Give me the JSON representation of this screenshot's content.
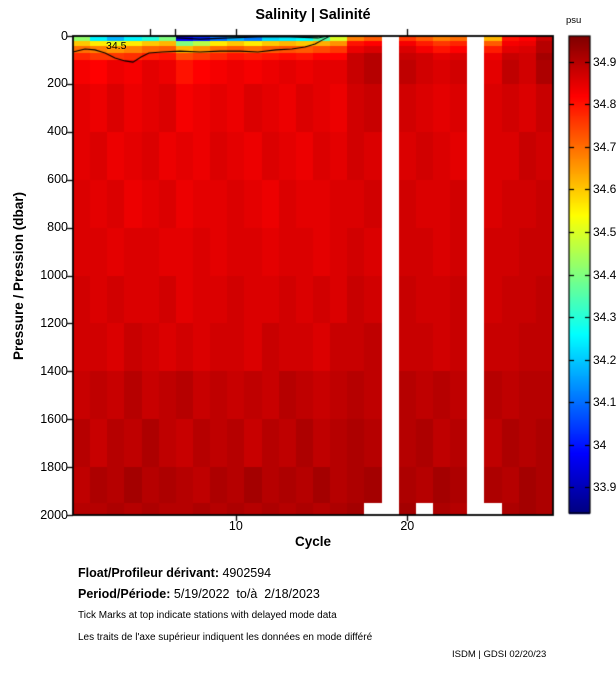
{
  "title": "Salinity | Salinité",
  "colorbar": {
    "unit_label": "psu",
    "tick_labels": [
      "34.9",
      "34.8",
      "34.7",
      "34.6",
      "34.5",
      "34.4",
      "34.3",
      "34.2",
      "34.1",
      "34",
      "33.9"
    ],
    "tick_values": [
      34.9,
      34.8,
      34.7,
      34.6,
      34.5,
      34.4,
      34.3,
      34.2,
      34.1,
      34.0,
      33.9
    ]
  },
  "axes": {
    "x_label": "Cycle",
    "y_label": "Pressure / Pression (dbar)",
    "x_tick_labels": [
      "10",
      "20"
    ],
    "x_tick_cycles": [
      10,
      20
    ],
    "y_tick_labels": [
      "0",
      "200",
      "400",
      "600",
      "800",
      "1000",
      "1200",
      "1400",
      "1600",
      "1800",
      "2000"
    ],
    "y_tick_values": [
      0,
      200,
      400,
      600,
      800,
      1000,
      1200,
      1400,
      1600,
      1800,
      2000
    ]
  },
  "footer": {
    "float_label": "Float/Profileur dérivant:",
    "float_value": " 4902594",
    "period_label": "Period/Période:",
    "period_value": " 5/19/2022  to/à  2/18/2023",
    "note_en": "Tick Marks at top indicate stations with delayed mode data",
    "note_fr": "Les traits de l'axe supérieur indiquent les données en mode différé",
    "credit": "ISDM | GDSI 02/20/23"
  },
  "chart_data": {
    "type": "heatmap",
    "colormap": "jet",
    "value_range": [
      33.84,
      34.96
    ],
    "x_cycles_range": [
      1,
      28
    ],
    "missing_cycles": [
      19,
      24
    ],
    "delayed_mode_tick_cycles": [
      5.0,
      6.45,
      10.0,
      20.0
    ],
    "depth_edges_dbar": [
      0,
      20,
      40,
      70,
      100,
      200,
      400,
      600,
      800,
      1000,
      1200,
      1400,
      1600,
      1800,
      1950,
      2000
    ],
    "salinity_grid": [
      [
        34.42,
        34.25,
        34.18,
        34.25,
        34.3,
        34.4,
        33.97,
        34.02,
        34.1,
        34.17,
        34.12,
        34.22,
        34.24,
        34.26,
        34.35,
        34.5,
        34.68,
        34.72,
        null,
        34.76,
        34.72,
        34.68,
        34.7,
        null,
        34.62,
        34.8,
        34.82,
        34.88
      ],
      [
        34.6,
        34.56,
        34.52,
        34.56,
        34.6,
        34.62,
        34.4,
        34.46,
        34.56,
        34.6,
        34.56,
        34.6,
        34.62,
        34.6,
        34.63,
        34.66,
        34.8,
        34.82,
        null,
        34.83,
        34.79,
        34.76,
        34.78,
        null,
        34.72,
        34.83,
        34.84,
        34.9
      ],
      [
        34.7,
        34.68,
        34.66,
        34.68,
        34.71,
        34.72,
        34.62,
        34.66,
        34.7,
        34.72,
        34.7,
        34.72,
        34.73,
        34.72,
        34.74,
        34.76,
        34.84,
        34.86,
        null,
        34.86,
        34.83,
        34.8,
        34.82,
        null,
        34.79,
        34.85,
        34.86,
        34.9
      ],
      [
        34.78,
        34.76,
        34.76,
        34.77,
        34.79,
        34.8,
        34.74,
        34.76,
        34.78,
        34.8,
        34.79,
        34.8,
        34.81,
        34.8,
        34.82,
        34.82,
        34.88,
        34.9,
        null,
        34.88,
        34.87,
        34.85,
        34.86,
        null,
        34.84,
        34.88,
        34.87,
        34.92
      ],
      [
        34.83,
        34.82,
        34.84,
        34.83,
        34.85,
        34.84,
        34.8,
        34.82,
        34.83,
        34.84,
        34.83,
        34.84,
        34.85,
        34.84,
        34.85,
        34.85,
        34.88,
        34.9,
        null,
        34.89,
        34.87,
        34.86,
        34.87,
        null,
        34.85,
        34.89,
        34.87,
        34.91
      ],
      [
        34.85,
        34.84,
        34.86,
        34.84,
        34.85,
        34.86,
        34.83,
        34.84,
        34.85,
        34.84,
        34.86,
        34.85,
        34.84,
        34.86,
        34.85,
        34.84,
        34.87,
        34.88,
        null,
        34.87,
        34.86,
        34.85,
        34.86,
        null,
        34.86,
        34.87,
        34.86,
        34.88
      ],
      [
        34.85,
        34.86,
        34.84,
        34.85,
        34.86,
        34.84,
        34.85,
        34.84,
        34.86,
        34.85,
        34.84,
        34.86,
        34.85,
        34.84,
        34.86,
        34.85,
        34.87,
        34.86,
        null,
        34.86,
        34.87,
        34.86,
        34.85,
        null,
        34.86,
        34.86,
        34.88,
        34.87
      ],
      [
        34.86,
        34.85,
        34.86,
        34.84,
        34.85,
        34.86,
        34.84,
        34.85,
        34.85,
        34.86,
        34.85,
        34.84,
        34.86,
        34.85,
        34.85,
        34.86,
        34.86,
        34.87,
        null,
        34.87,
        34.86,
        34.86,
        34.87,
        null,
        34.86,
        34.87,
        34.87,
        34.88
      ],
      [
        34.86,
        34.86,
        34.85,
        34.86,
        34.86,
        34.85,
        34.85,
        34.86,
        34.85,
        34.86,
        34.86,
        34.85,
        34.86,
        34.86,
        34.85,
        34.86,
        34.87,
        34.86,
        null,
        34.87,
        34.87,
        34.86,
        34.87,
        null,
        34.87,
        34.87,
        34.88,
        34.88
      ],
      [
        34.87,
        34.86,
        34.87,
        34.86,
        34.86,
        34.87,
        34.85,
        34.86,
        34.86,
        34.87,
        34.86,
        34.86,
        34.87,
        34.86,
        34.87,
        34.86,
        34.88,
        34.87,
        null,
        34.88,
        34.87,
        34.87,
        34.88,
        null,
        34.87,
        34.88,
        34.88,
        34.89
      ],
      [
        34.87,
        34.87,
        34.86,
        34.88,
        34.87,
        34.86,
        34.87,
        34.86,
        34.87,
        34.87,
        34.86,
        34.88,
        34.87,
        34.87,
        34.86,
        34.88,
        34.88,
        34.89,
        null,
        34.88,
        34.88,
        34.87,
        34.88,
        null,
        34.88,
        34.88,
        34.89,
        34.89
      ],
      [
        34.88,
        34.89,
        34.88,
        34.9,
        34.88,
        34.89,
        34.9,
        34.88,
        34.89,
        34.88,
        34.89,
        34.88,
        34.9,
        34.89,
        34.88,
        34.89,
        34.9,
        34.89,
        null,
        34.9,
        34.89,
        34.9,
        34.89,
        null,
        34.9,
        34.89,
        34.9,
        34.9
      ],
      [
        34.9,
        34.88,
        34.9,
        34.89,
        34.91,
        34.89,
        34.88,
        34.9,
        34.89,
        34.9,
        34.88,
        34.9,
        34.89,
        34.91,
        34.89,
        34.9,
        34.91,
        34.9,
        null,
        34.9,
        34.91,
        34.89,
        34.9,
        null,
        34.89,
        34.91,
        34.9,
        34.91
      ],
      [
        34.89,
        34.91,
        34.9,
        34.92,
        34.9,
        34.91,
        34.9,
        34.89,
        34.91,
        34.9,
        34.92,
        34.9,
        34.91,
        34.9,
        34.92,
        34.9,
        34.91,
        34.92,
        null,
        34.91,
        34.9,
        34.92,
        34.91,
        null,
        34.91,
        34.9,
        34.92,
        34.91
      ],
      [
        34.9,
        34.9,
        34.91,
        34.9,
        34.91,
        34.9,
        34.9,
        34.91,
        34.9,
        34.91,
        34.9,
        34.91,
        34.9,
        34.91,
        34.9,
        34.91,
        34.92,
        null,
        null,
        34.92,
        null,
        34.91,
        34.9,
        null,
        null,
        34.91,
        34.92,
        34.91
      ]
    ],
    "contour": {
      "level": 34.5,
      "label": "34.5",
      "paths_cycle_dbar": [
        [
          [
            0.5,
            67
          ],
          [
            1.2,
            54
          ],
          [
            1.78,
            58
          ],
          [
            2.37,
            71
          ],
          [
            2.95,
            92
          ],
          [
            3.53,
            104
          ],
          [
            4.0,
            109
          ],
          [
            4.47,
            88
          ],
          [
            4.93,
            71
          ],
          [
            5.69,
            67
          ],
          [
            6.74,
            63
          ],
          [
            7.91,
            67
          ],
          [
            9.07,
            63
          ],
          [
            10.24,
            63
          ],
          [
            11.29,
            67
          ],
          [
            12.34,
            58
          ],
          [
            13.27,
            54
          ],
          [
            14.03,
            46
          ],
          [
            14.62,
            33
          ],
          [
            15.14,
            13
          ],
          [
            15.49,
            0
          ]
        ],
        [
          [
            6.51,
            8
          ],
          [
            7.91,
            13
          ],
          [
            9.66,
            8
          ],
          [
            11.29,
            4
          ],
          [
            13.15,
            4
          ],
          [
            14.79,
            8
          ],
          [
            15.38,
            0
          ]
        ]
      ]
    }
  }
}
